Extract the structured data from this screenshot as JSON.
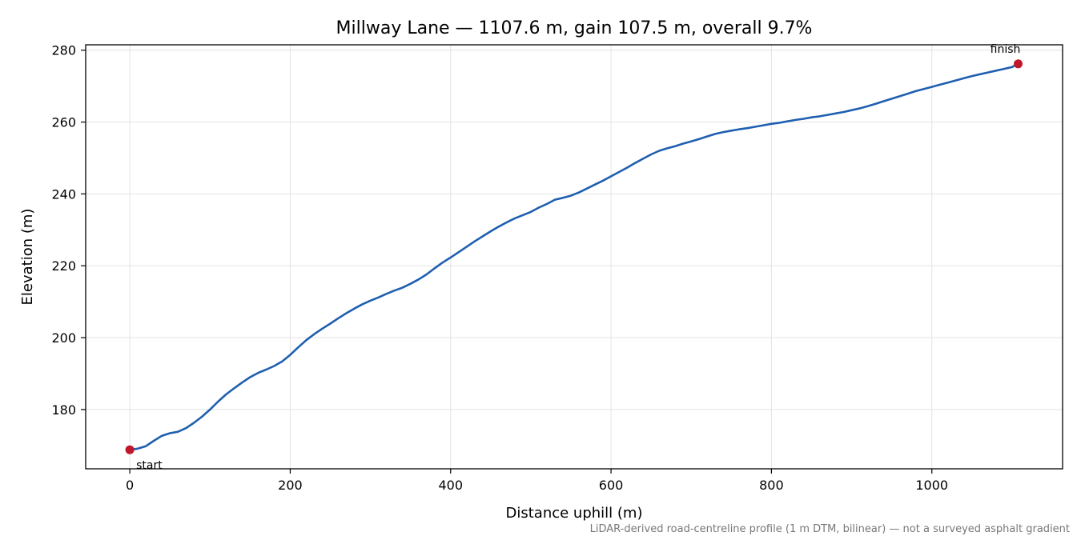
{
  "chart_data": {
    "type": "line",
    "title": "Millway Lane — 1107.6 m, gain 107.5 m, overall 9.7%",
    "xlabel": "Distance uphill (m)",
    "ylabel": "Elevation (m)",
    "xlim": [
      -55,
      1163
    ],
    "ylim": [
      163.5,
      281.5
    ],
    "xticks": [
      0,
      200,
      400,
      600,
      800,
      1000
    ],
    "yticks": [
      180,
      200,
      220,
      240,
      260,
      280
    ],
    "grid": true,
    "line_color": "#1f5fb0",
    "marker_color": "#c0182a",
    "series": [
      {
        "x": [
          0,
          10,
          20,
          30,
          40,
          50,
          60,
          70,
          80,
          90,
          100,
          110,
          120,
          130,
          140,
          150,
          160,
          170,
          180,
          190,
          200,
          210,
          220,
          230,
          240,
          250,
          260,
          270,
          280,
          290,
          300,
          310,
          320,
          330,
          340,
          350,
          360,
          370,
          380,
          390,
          400,
          410,
          420,
          430,
          440,
          450,
          460,
          470,
          480,
          490,
          500,
          510,
          520,
          530,
          540,
          550,
          560,
          570,
          580,
          590,
          600,
          610,
          620,
          630,
          640,
          650,
          660,
          670,
          680,
          690,
          700,
          710,
          720,
          730,
          740,
          750,
          760,
          770,
          780,
          790,
          800,
          810,
          820,
          830,
          840,
          850,
          860,
          870,
          880,
          890,
          900,
          910,
          920,
          930,
          940,
          950,
          960,
          970,
          980,
          990,
          1000,
          1010,
          1020,
          1030,
          1040,
          1050,
          1060,
          1070,
          1080,
          1090,
          1100,
          1107.6
        ],
        "y": [
          168.8,
          169.1,
          169.8,
          171.3,
          172.7,
          173.4,
          173.8,
          174.8,
          176.3,
          178.0,
          180.0,
          182.2,
          184.2,
          185.9,
          187.5,
          189.0,
          190.2,
          191.1,
          192.1,
          193.4,
          195.2,
          197.3,
          199.3,
          201.0,
          202.5,
          203.9,
          205.4,
          206.8,
          208.1,
          209.3,
          210.3,
          211.2,
          212.2,
          213.1,
          213.9,
          215.0,
          216.2,
          217.6,
          219.3,
          220.9,
          222.3,
          223.8,
          225.3,
          226.8,
          228.2,
          229.6,
          230.9,
          232.1,
          233.2,
          234.1,
          235.0,
          236.2,
          237.2,
          238.4,
          238.9,
          239.5,
          240.4,
          241.5,
          242.6,
          243.7,
          244.9,
          246.1,
          247.3,
          248.6,
          249.8,
          251.0,
          252.0,
          252.7,
          253.3,
          254.0,
          254.6,
          255.3,
          256.0,
          256.7,
          257.2,
          257.6,
          258.0,
          258.3,
          258.7,
          259.1,
          259.5,
          259.8,
          260.2,
          260.6,
          260.9,
          261.3,
          261.6,
          262.0,
          262.4,
          262.8,
          263.3,
          263.8,
          264.4,
          265.1,
          265.8,
          266.5,
          267.2,
          267.9,
          268.6,
          269.2,
          269.8,
          270.4,
          271.0,
          271.6,
          272.2,
          272.8,
          273.3,
          273.8,
          274.3,
          274.8,
          275.3,
          276.2
        ]
      }
    ],
    "annotations": [
      {
        "text": "start",
        "x": 0,
        "y": 168.8
      },
      {
        "text": "finish",
        "x": 1107.6,
        "y": 276.2
      }
    ],
    "footnote": "LiDAR-derived road-centreline profile (1 m DTM, bilinear) — not a surveyed asphalt gradient"
  }
}
